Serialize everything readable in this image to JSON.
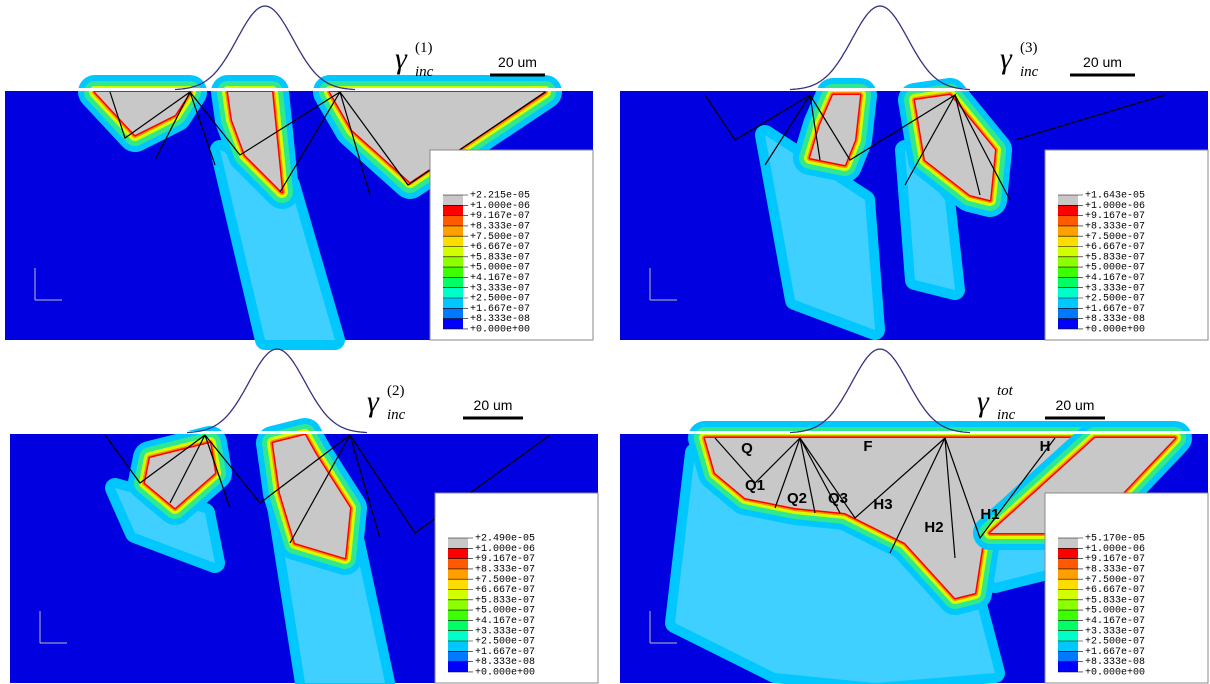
{
  "panels": [
    {
      "symbol": "γ",
      "subscript": "inc",
      "superscript": "(1)",
      "scale": "20 um",
      "legend": [
        "+2.215e-05",
        "+1.000e-06",
        "+9.167e-07",
        "+8.333e-07",
        "+7.500e-07",
        "+6.667e-07",
        "+5.833e-07",
        "+5.000e-07",
        "+4.167e-07",
        "+3.333e-07",
        "+2.500e-07",
        "+1.667e-07",
        "+8.333e-08",
        "+0.000e+00"
      ]
    },
    {
      "symbol": "γ",
      "subscript": "inc",
      "superscript": "(3)",
      "scale": "20 um",
      "legend": [
        "+1.643e-05",
        "+1.000e-06",
        "+9.167e-07",
        "+8.333e-07",
        "+7.500e-07",
        "+6.667e-07",
        "+5.833e-07",
        "+5.000e-07",
        "+4.167e-07",
        "+3.333e-07",
        "+2.500e-07",
        "+1.667e-07",
        "+8.333e-08",
        "+0.000e+00"
      ]
    },
    {
      "symbol": "γ",
      "subscript": "inc",
      "superscript": "(2)",
      "scale": "20 um",
      "legend": [
        "+2.490e-05",
        "+1.000e-06",
        "+9.167e-07",
        "+8.333e-07",
        "+7.500e-07",
        "+6.667e-07",
        "+5.833e-07",
        "+5.000e-07",
        "+4.167e-07",
        "+3.333e-07",
        "+2.500e-07",
        "+1.667e-07",
        "+8.333e-08",
        "+0.000e+00"
      ]
    },
    {
      "symbol": "γ",
      "subscript": "inc",
      "superscript": "tot",
      "scale": "20 um",
      "legend": [
        "+5.170e-05",
        "+1.000e-06",
        "+9.167e-07",
        "+8.333e-07",
        "+7.500e-07",
        "+6.667e-07",
        "+5.833e-07",
        "+5.000e-07",
        "+4.167e-07",
        "+3.333e-07",
        "+2.500e-07",
        "+1.667e-07",
        "+8.333e-08",
        "+0.000e+00"
      ],
      "regions": [
        "Q",
        "F",
        "H",
        "Q1",
        "Q2",
        "Q3",
        "H3",
        "H2",
        "H1"
      ]
    }
  ]
}
